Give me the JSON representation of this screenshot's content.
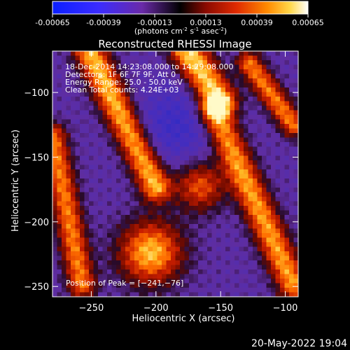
{
  "colorbar": {
    "ticks": [
      "-0.00065",
      "-0.00039",
      "-0.00013",
      "0.00013",
      "0.00039",
      "0.00065"
    ],
    "unit_label": "(photons cm",
    "unit_exp1": "-2",
    "unit_mid": " s",
    "unit_exp2": "-1",
    "unit_end": " asec",
    "unit_exp3": "-2",
    "unit_close": ")",
    "range": [
      -0.00065,
      0.00065
    ]
  },
  "chart_data": {
    "type": "heatmap",
    "title": "Reconstructed RHESSI Image",
    "xlabel": "Heliocentric X (arcsec)",
    "ylabel": "Heliocentric Y (arcsec)",
    "xlim": [
      -280,
      -90
    ],
    "ylim": [
      -258,
      -68
    ],
    "xticks": [
      -250,
      -200,
      -150,
      -100
    ],
    "yticks": [
      -100,
      -150,
      -200,
      -250
    ],
    "xtick_labels": [
      "−250",
      "−200",
      "−150",
      "−100"
    ],
    "ytick_labels": [
      "−100",
      "−150",
      "−200",
      "−250"
    ],
    "annotations": [
      "18-Dec-2014 14:23:08.000 to 14:29:08.000",
      "Detectors: 1F 6F 7F 9F, Att 0",
      "Energy Range: 25.0 - 50.0 keV",
      "Clean     Total counts: 4.24E+03"
    ],
    "peak_label": "Position of Peak = [−241,−76]",
    "peak_position": [
      -241,
      -76
    ],
    "colorscale": "red-temperature (blue negative to white positive)"
  },
  "footer": {
    "date": "20-May-2022 19:04"
  }
}
